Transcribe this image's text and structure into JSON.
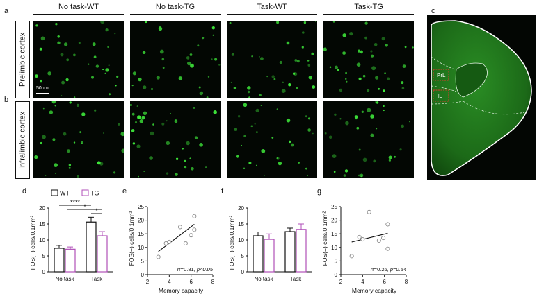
{
  "panel_labels": {
    "a": "a",
    "b": "b",
    "c": "c",
    "d": "d",
    "e": "e",
    "f": "f",
    "g": "g"
  },
  "columns": [
    "No task-WT",
    "No task-TG",
    "Task-WT",
    "Task-TG"
  ],
  "rows": [
    "Prelimbic cortex",
    "Infralimbic cortex"
  ],
  "scale_bar": "50μm",
  "brain_labels": {
    "prl": "PrL",
    "il": "IL"
  },
  "colors": {
    "wt": "#111111",
    "tg": "#b04fb8",
    "green": "#3ee83a",
    "brain": "#1e6e1a"
  },
  "legend": {
    "wt": "WT",
    "tg": "TG"
  },
  "chart_data": [
    {
      "panel": "d",
      "type": "bar",
      "categories": [
        "No task",
        "Task"
      ],
      "series": [
        {
          "name": "WT",
          "values": [
            7.4,
            15.6
          ],
          "errors": [
            0.9,
            1.5
          ]
        },
        {
          "name": "TG",
          "values": [
            7.1,
            11.3
          ],
          "errors": [
            0.7,
            1.3
          ]
        }
      ],
      "ylabel": "FOS(+) cells/0.1mm²",
      "ylim": [
        0,
        20
      ],
      "yticks": [
        0,
        5,
        10,
        15,
        20
      ],
      "significance": [
        "****",
        "*",
        "*"
      ]
    },
    {
      "panel": "e",
      "type": "scatter",
      "points": [
        [
          3.0,
          6.5
        ],
        [
          3.7,
          11.5
        ],
        [
          4.0,
          12.0
        ],
        [
          5.0,
          17.5
        ],
        [
          5.5,
          11.5
        ],
        [
          6.0,
          14.5
        ],
        [
          6.3,
          21.5
        ],
        [
          6.3,
          16.5
        ]
      ],
      "fit": [
        [
          3.0,
          8.5
        ],
        [
          6.3,
          18.5
        ]
      ],
      "xlabel": "Memory capacity",
      "ylabel": "FOS(+) cells/0.1mm²",
      "xlim": [
        2,
        8
      ],
      "ylim": [
        0,
        25
      ],
      "xticks": [
        2,
        4,
        6,
        8
      ],
      "yticks": [
        0,
        5,
        10,
        15,
        20,
        25
      ],
      "stat_r": "r=0.81, ",
      "stat_p": "p<0.05"
    },
    {
      "panel": "f",
      "type": "bar",
      "categories": [
        "No task",
        "Task"
      ],
      "series": [
        {
          "name": "WT",
          "values": [
            11.3,
            12.6
          ],
          "errors": [
            1.2,
            1.1
          ]
        },
        {
          "name": "TG",
          "values": [
            10.2,
            13.3
          ],
          "errors": [
            1.7,
            1.7
          ]
        }
      ],
      "ylabel": "FOS(+) cells/0.1mm²",
      "ylim": [
        0,
        20
      ],
      "yticks": [
        0,
        5,
        10,
        15,
        20
      ]
    },
    {
      "panel": "g",
      "type": "scatter",
      "points": [
        [
          3.0,
          6.8
        ],
        [
          3.7,
          13.8
        ],
        [
          4.0,
          13.0
        ],
        [
          4.6,
          23.0
        ],
        [
          5.5,
          12.5
        ],
        [
          5.9,
          13.5
        ],
        [
          6.3,
          18.5
        ],
        [
          6.3,
          9.5
        ]
      ],
      "fit": [
        [
          3.0,
          12.0
        ],
        [
          6.3,
          15.2
        ]
      ],
      "xlabel": "Memory capacity",
      "ylabel": "FOS(+) cells/0.1mm²",
      "xlim": [
        2,
        8
      ],
      "ylim": [
        0,
        25
      ],
      "xticks": [
        2,
        4,
        6,
        8
      ],
      "yticks": [
        0,
        5,
        10,
        15,
        20,
        25
      ],
      "stat_r": "r=0.26, ",
      "stat_p": "p=0.54"
    }
  ]
}
